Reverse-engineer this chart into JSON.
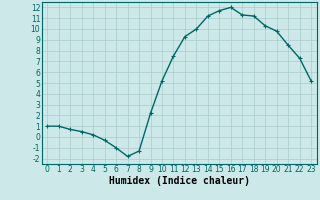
{
  "x": [
    0,
    1,
    2,
    3,
    4,
    5,
    6,
    7,
    8,
    9,
    10,
    11,
    12,
    13,
    14,
    15,
    16,
    17,
    18,
    19,
    20,
    21,
    22,
    23
  ],
  "y": [
    1,
    1,
    0.7,
    0.5,
    0.2,
    -0.3,
    -1.0,
    -1.8,
    -1.3,
    2.2,
    5.2,
    7.5,
    9.3,
    10.0,
    11.2,
    11.7,
    12.0,
    11.3,
    11.2,
    10.3,
    9.8,
    8.5,
    7.3,
    5.2
  ],
  "line_color": "#006666",
  "marker": "+",
  "marker_color": "#006666",
  "bg_color": "#cce8e8",
  "grid_color": "#aacccc",
  "xlabel": "Humidex (Indice chaleur)",
  "xlabel_fontsize": 7,
  "xlim": [
    -0.5,
    23.5
  ],
  "ylim": [
    -2.5,
    12.5
  ],
  "yticks": [
    -2,
    -1,
    0,
    1,
    2,
    3,
    4,
    5,
    6,
    7,
    8,
    9,
    10,
    11,
    12
  ],
  "xticks": [
    0,
    1,
    2,
    3,
    4,
    5,
    6,
    7,
    8,
    9,
    10,
    11,
    12,
    13,
    14,
    15,
    16,
    17,
    18,
    19,
    20,
    21,
    22,
    23
  ],
  "tick_fontsize": 5.5,
  "line_width": 1.0,
  "marker_size": 3
}
